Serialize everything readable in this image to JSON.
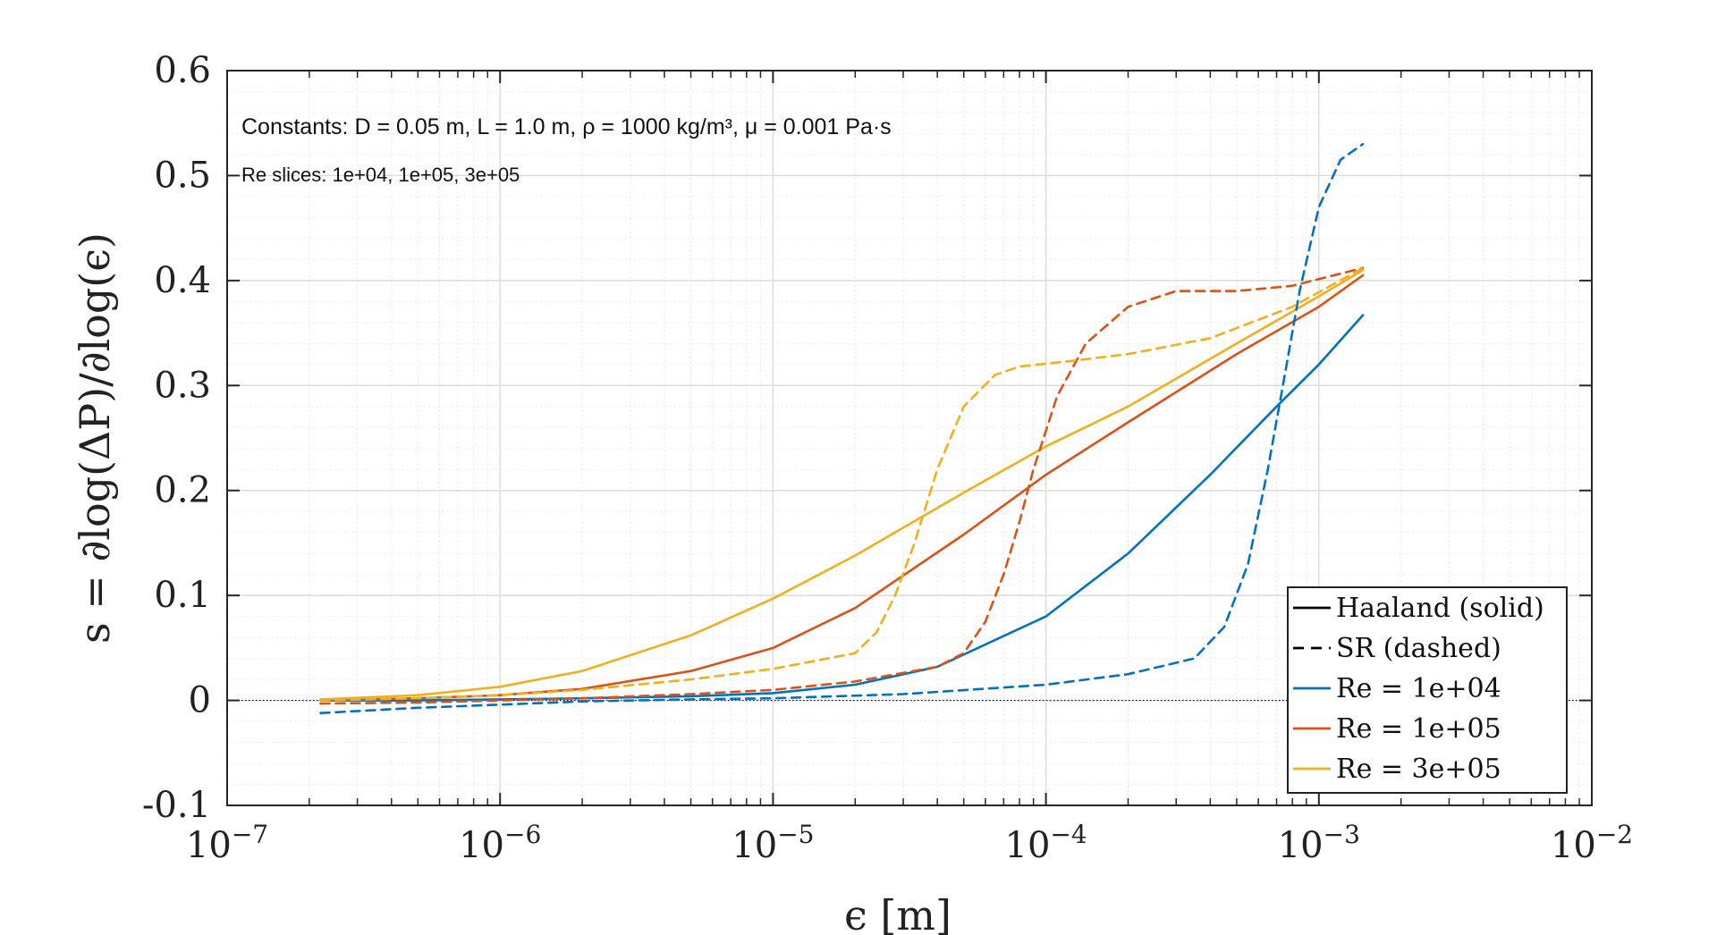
{
  "chart_data": {
    "type": "line",
    "title": "",
    "xlabel": "ϵ [m]",
    "ylabel": "s = ∂log(ΔP)/∂log(ϵ)",
    "xscale": "log",
    "xlim": [
      1e-07,
      0.01
    ],
    "ylim": [
      -0.1,
      0.6
    ],
    "grid": true,
    "legend_position": "bottom-right",
    "x_ticks": [
      {
        "value": 1e-07,
        "base": "10",
        "exp": "−7"
      },
      {
        "value": 1e-06,
        "base": "10",
        "exp": "−6"
      },
      {
        "value": 1e-05,
        "base": "10",
        "exp": "−5"
      },
      {
        "value": 0.0001,
        "base": "10",
        "exp": "−4"
      },
      {
        "value": 0.001,
        "base": "10",
        "exp": "−3"
      },
      {
        "value": 0.01,
        "base": "10",
        "exp": "−2"
      }
    ],
    "y_ticks": [
      {
        "value": 0.6,
        "label": "0.6"
      },
      {
        "value": 0.5,
        "label": "0.5"
      },
      {
        "value": 0.4,
        "label": "0.4"
      },
      {
        "value": 0.3,
        "label": "0.3"
      },
      {
        "value": 0.2,
        "label": "0.2"
      },
      {
        "value": 0.1,
        "label": "0.1"
      },
      {
        "value": 0,
        "label": "0"
      },
      {
        "value": -0.1,
        "label": "-0.1"
      }
    ],
    "reference_line": {
      "y": 0,
      "style": "dotted"
    },
    "annotations": [
      "Constants:  D = 0.05 m,  L = 1.0 m,  ρ = 1000 kg/m³, μ = 0.001 Pa·s",
      "Re slices: 1e+04, 1e+05, 3e+05"
    ],
    "legend": [
      {
        "label": "Haaland (solid)",
        "style": "solid",
        "color": "#000000"
      },
      {
        "label": "SR (dashed)",
        "style": "dashed",
        "color": "#000000"
      },
      {
        "label": "Re = 1e+04",
        "style": "solid",
        "color": "#0072BD"
      },
      {
        "label": "Re = 1e+05",
        "style": "solid",
        "color": "#D95319"
      },
      {
        "label": "Re = 3e+05",
        "style": "solid",
        "color": "#EDB120"
      }
    ],
    "series": [
      {
        "name": "Haaland Re = 1e+04",
        "style": "solid",
        "color": "#0072BD",
        "x": [
          2.2e-07,
          5e-07,
          1e-06,
          2e-06,
          5e-06,
          1e-05,
          2e-05,
          4e-05,
          0.0001,
          0.0002,
          0.0004,
          0.0007,
          0.001,
          0.00145
        ],
        "y": [
          0.0,
          0.0,
          0.001,
          0.002,
          0.004,
          0.007,
          0.015,
          0.032,
          0.08,
          0.14,
          0.215,
          0.28,
          0.32,
          0.367
        ]
      },
      {
        "name": "Haaland Re = 1e+05",
        "style": "solid",
        "color": "#D95319",
        "x": [
          2.2e-07,
          5e-07,
          1e-06,
          2e-06,
          5e-06,
          1e-05,
          2e-05,
          5e-05,
          0.0001,
          0.0002,
          0.0005,
          0.001,
          0.00145
        ],
        "y": [
          0.0,
          0.002,
          0.005,
          0.011,
          0.028,
          0.05,
          0.088,
          0.158,
          0.215,
          0.265,
          0.33,
          0.375,
          0.405
        ]
      },
      {
        "name": "Haaland Re = 3e+05",
        "style": "solid",
        "color": "#EDB120",
        "x": [
          2.2e-07,
          5e-07,
          1e-06,
          2e-06,
          5e-06,
          1e-05,
          2e-05,
          5e-05,
          0.0001,
          0.0002,
          0.0005,
          0.001,
          0.00145
        ],
        "y": [
          0.001,
          0.005,
          0.013,
          0.028,
          0.062,
          0.097,
          0.138,
          0.198,
          0.242,
          0.28,
          0.34,
          0.385,
          0.41
        ]
      },
      {
        "name": "SR Re = 1e+04",
        "style": "dashed",
        "color": "#0072BD",
        "x": [
          2.2e-07,
          5e-07,
          1e-06,
          2e-06,
          5e-06,
          1e-05,
          3e-05,
          0.0001,
          0.0002,
          0.00035,
          0.00045,
          0.00055,
          0.00065,
          0.00075,
          0.00085,
          0.001,
          0.0012,
          0.00145
        ],
        "y": [
          -0.012,
          -0.007,
          -0.004,
          -0.001,
          0.001,
          0.002,
          0.006,
          0.015,
          0.025,
          0.04,
          0.07,
          0.13,
          0.22,
          0.31,
          0.39,
          0.47,
          0.515,
          0.53
        ]
      },
      {
        "name": "SR Re = 1e+05",
        "style": "dashed",
        "color": "#D95319",
        "x": [
          2.2e-07,
          5e-07,
          1e-06,
          2e-06,
          5e-06,
          1e-05,
          2e-05,
          4e-05,
          5e-05,
          6e-05,
          7e-05,
          8e-05,
          9e-05,
          0.00011,
          0.00014,
          0.0002,
          0.0003,
          0.0005,
          0.0008,
          0.00145
        ],
        "y": [
          -0.003,
          -0.002,
          0.0,
          0.002,
          0.006,
          0.01,
          0.018,
          0.032,
          0.045,
          0.075,
          0.12,
          0.17,
          0.22,
          0.29,
          0.34,
          0.375,
          0.39,
          0.39,
          0.395,
          0.412
        ]
      },
      {
        "name": "SR Re = 3e+05",
        "style": "dashed",
        "color": "#EDB120",
        "x": [
          2.2e-07,
          5e-07,
          1e-06,
          2e-06,
          5e-06,
          1e-05,
          2e-05,
          2.4e-05,
          2.8e-05,
          3.3e-05,
          4e-05,
          5e-05,
          6.5e-05,
          8e-05,
          0.00012,
          0.0002,
          0.0004,
          0.0008,
          0.00145
        ],
        "y": [
          0.0,
          0.002,
          0.005,
          0.01,
          0.02,
          0.03,
          0.045,
          0.065,
          0.1,
          0.15,
          0.22,
          0.28,
          0.31,
          0.318,
          0.323,
          0.33,
          0.345,
          0.375,
          0.412
        ]
      }
    ]
  }
}
